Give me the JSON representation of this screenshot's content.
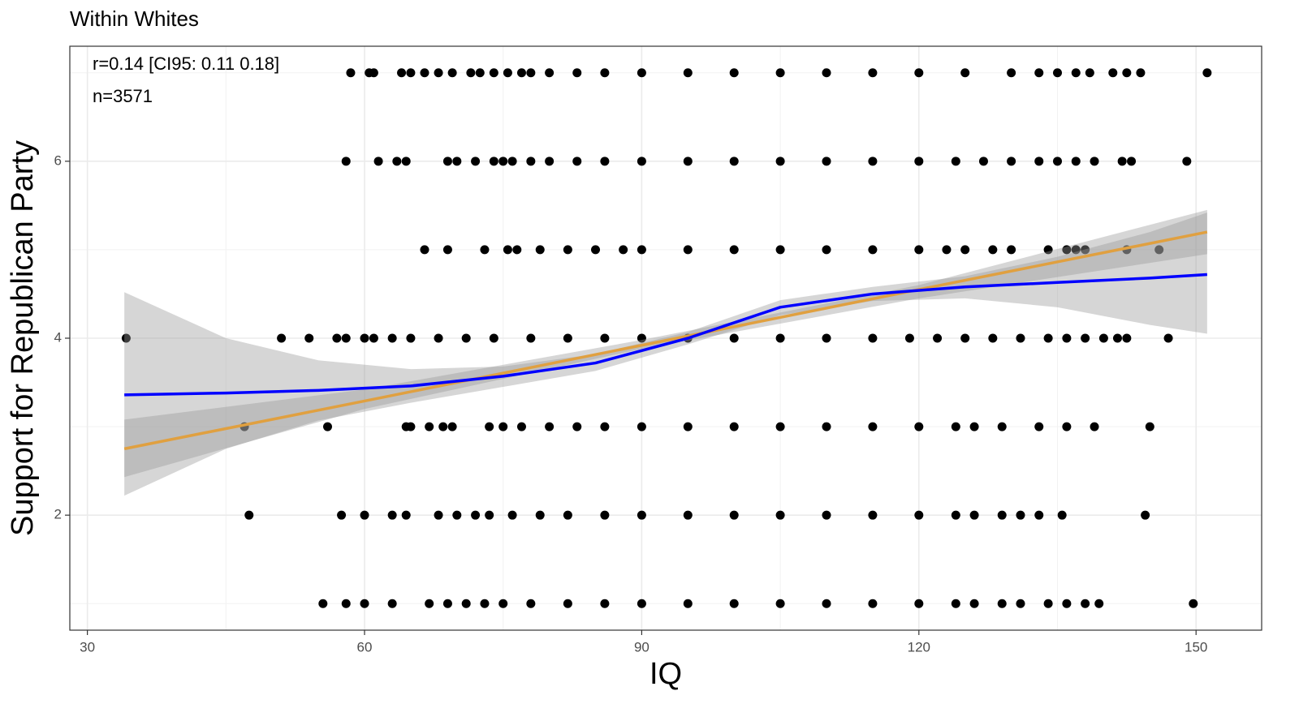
{
  "chart_data": {
    "type": "scatter",
    "title": "Within Whites",
    "xlabel": "IQ",
    "ylabel": "Support for Republican Party",
    "annotations": [
      "r=0.14 [CI95: 0.11 0.18]",
      "n=3571"
    ],
    "color": "#000000",
    "x": [
      58.5,
      60.5,
      61,
      64,
      65,
      66.5,
      68,
      69.5,
      71.5,
      72.5,
      74,
      75.5,
      77,
      78,
      80,
      83,
      86,
      90,
      95,
      100,
      105,
      110,
      115,
      120,
      125,
      130,
      133,
      135,
      137,
      138.5,
      141,
      142.5,
      144,
      151.2,
      58,
      61.5,
      63.5,
      64.5,
      69,
      70,
      72,
      74,
      75,
      76,
      78,
      80,
      83,
      86,
      90,
      95,
      100,
      105,
      110,
      115,
      120,
      124,
      127,
      130,
      133,
      135,
      137,
      139,
      142,
      143,
      149,
      66.5,
      69,
      73,
      75.5,
      76.5,
      79,
      82,
      85,
      88,
      90,
      95,
      100,
      105,
      110,
      115,
      120,
      123,
      125,
      128,
      130,
      134,
      136,
      137,
      138,
      142.5,
      146,
      34.2,
      51,
      54,
      57,
      58,
      60,
      61,
      63,
      65,
      68,
      71,
      74,
      78,
      82,
      86,
      90,
      95,
      100,
      105,
      110,
      115,
      119,
      122,
      125,
      128,
      131,
      134,
      136,
      138,
      140,
      141.5,
      142.5,
      147,
      47,
      56,
      64.5,
      65,
      67,
      68.5,
      69.5,
      73.5,
      75,
      77,
      80,
      83,
      86,
      90,
      95,
      100,
      105,
      110,
      115,
      120,
      124,
      126,
      129,
      133,
      136,
      139,
      145,
      47.5,
      57.5,
      60,
      63,
      64.5,
      68,
      70,
      72,
      73.5,
      76,
      79,
      82,
      86,
      90,
      95,
      100,
      105,
      110,
      115,
      120,
      124,
      126,
      129,
      131,
      133,
      135.5,
      144.5,
      55.5,
      58,
      60,
      63,
      67,
      69,
      71,
      73,
      75,
      78,
      82,
      86,
      90,
      95,
      100,
      105,
      110,
      115,
      120,
      124,
      126,
      129,
      131,
      134,
      136,
      138,
      139.5,
      149.7
    ],
    "values": [
      7,
      7,
      7,
      7,
      7,
      7,
      7,
      7,
      7,
      7,
      7,
      7,
      7,
      7,
      7,
      7,
      7,
      7,
      7,
      7,
      7,
      7,
      7,
      7,
      7,
      7,
      7,
      7,
      7,
      7,
      7,
      7,
      7,
      7,
      6,
      6,
      6,
      6,
      6,
      6,
      6,
      6,
      6,
      6,
      6,
      6,
      6,
      6,
      6,
      6,
      6,
      6,
      6,
      6,
      6,
      6,
      6,
      6,
      6,
      6,
      6,
      6,
      6,
      6,
      6,
      5,
      5,
      5,
      5,
      5,
      5,
      5,
      5,
      5,
      5,
      5,
      5,
      5,
      5,
      5,
      5,
      5,
      5,
      5,
      5,
      5,
      5,
      5,
      5,
      5,
      5,
      4,
      4,
      4,
      4,
      4,
      4,
      4,
      4,
      4,
      4,
      4,
      4,
      4,
      4,
      4,
      4,
      4,
      4,
      4,
      4,
      4,
      4,
      4,
      4,
      4,
      4,
      4,
      4,
      4,
      4,
      4,
      4,
      4,
      3,
      3,
      3,
      3,
      3,
      3,
      3,
      3,
      3,
      3,
      3,
      3,
      3,
      3,
      3,
      3,
      3,
      3,
      3,
      3,
      3,
      3,
      3,
      3,
      3,
      3,
      3,
      2,
      2,
      2,
      2,
      2,
      2,
      2,
      2,
      2,
      2,
      2,
      2,
      2,
      2,
      2,
      2,
      2,
      2,
      2,
      2,
      2,
      2,
      2,
      2,
      2,
      2,
      2,
      1,
      1,
      1,
      1,
      1,
      1,
      1,
      1,
      1,
      1,
      1,
      1,
      1,
      1,
      1,
      1,
      1,
      1,
      1,
      1,
      1,
      1,
      1,
      1,
      1,
      1,
      1,
      1
    ],
    "xlim": [
      28.1,
      157.1
    ],
    "ylim": [
      0.7,
      7.3
    ],
    "xticks": [
      30,
      60,
      90,
      120,
      150
    ],
    "yticks": [
      2,
      4,
      6
    ],
    "grid": true,
    "minor_grid": true,
    "fits": [
      {
        "color": "#0000ff",
        "band_color": "#999999",
        "x": [
          34,
          45,
          55,
          65,
          75,
          85,
          95,
          105,
          115,
          125,
          135,
          145,
          151.2
        ],
        "values": [
          3.36,
          3.38,
          3.41,
          3.46,
          3.57,
          3.72,
          4.0,
          4.35,
          4.5,
          4.58,
          4.63,
          4.68,
          4.72
        ],
        "lower": [
          2.22,
          2.75,
          3.07,
          3.27,
          3.45,
          3.63,
          3.93,
          4.26,
          4.42,
          4.45,
          4.35,
          4.15,
          4.05
        ],
        "upper": [
          4.52,
          4.0,
          3.75,
          3.65,
          3.68,
          3.82,
          4.07,
          4.43,
          4.58,
          4.7,
          4.92,
          5.2,
          5.42
        ]
      },
      {
        "color": "#e0a040",
        "band_color": "#999999",
        "x": [
          34,
          60,
          90,
          120,
          151.2
        ],
        "values": [
          2.75,
          3.29,
          3.92,
          4.55,
          5.2
        ],
        "lower": [
          2.43,
          3.2,
          3.88,
          4.45,
          4.95
        ],
        "upper": [
          3.08,
          3.42,
          3.98,
          4.6,
          5.45
        ]
      }
    ]
  }
}
